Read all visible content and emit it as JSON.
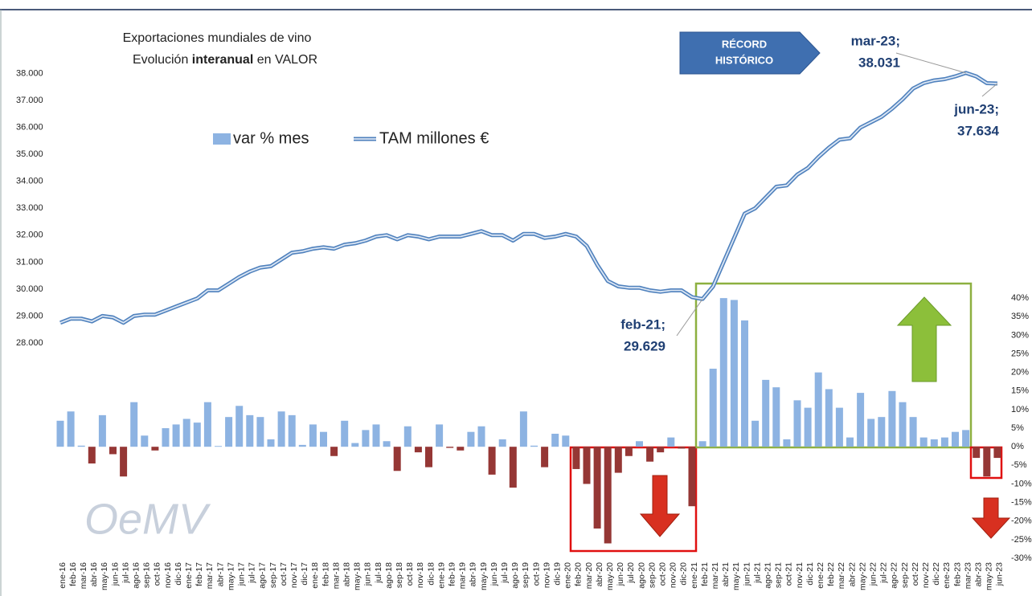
{
  "chart_data": {
    "type": "combo",
    "title": "Exportaciones mundiales de vino",
    "subtitle": [
      "Evolución ",
      "interanual",
      " en VALOR"
    ],
    "categories": [
      "ene-16",
      "feb-16",
      "mar-16",
      "abr-16",
      "may-16",
      "jun-16",
      "jul-16",
      "ago-16",
      "sep-16",
      "oct-16",
      "nov-16",
      "dic-16",
      "ene-17",
      "feb-17",
      "mar-17",
      "abr-17",
      "may-17",
      "jun-17",
      "jul-17",
      "ago-17",
      "sep-17",
      "oct-17",
      "nov-17",
      "dic-17",
      "ene-18",
      "feb-18",
      "mar-18",
      "abr-18",
      "may-18",
      "jun-18",
      "jul-18",
      "ago-18",
      "sep-18",
      "oct-18",
      "nov-18",
      "dic-18",
      "ene-19",
      "feb-19",
      "mar-19",
      "abr-19",
      "may-19",
      "jun-19",
      "jul-19",
      "ago-19",
      "sep-19",
      "oct-19",
      "nov-19",
      "dic-19",
      "ene-20",
      "feb-20",
      "mar-20",
      "abr-20",
      "may-20",
      "jun-20",
      "jul-20",
      "ago-20",
      "sep-20",
      "oct-20",
      "nov-20",
      "dic-20",
      "ene-21",
      "feb-21",
      "mar-21",
      "abr-21",
      "may-21",
      "jun-21",
      "jul-21",
      "ago-21",
      "sep-21",
      "oct-21",
      "nov-21",
      "dic-21",
      "ene-22",
      "feb-22",
      "mar-22",
      "abr-22",
      "may-22",
      "jun-22",
      "jul-22",
      "ago-22",
      "sep-22",
      "oct-22",
      "nov-22",
      "dic-22",
      "ene-23",
      "feb-23",
      "mar-23",
      "abr-23",
      "may-23",
      "jun-23"
    ],
    "series": [
      {
        "name": "var % mes",
        "type": "bar",
        "axis": "y2",
        "color": "#8db3e2",
        "negative_color": "#953735",
        "values": [
          7,
          9.5,
          0.3,
          -4.5,
          8.5,
          -2,
          -8,
          12,
          3,
          -1,
          5,
          6,
          7.5,
          6.5,
          12,
          0.2,
          8,
          11,
          8.5,
          8,
          2,
          9.5,
          8.5,
          0.5,
          6,
          4,
          -2.5,
          7,
          1,
          4.5,
          6,
          1.5,
          -6.5,
          5.5,
          -1.5,
          -5.5,
          6,
          -0.3,
          -1,
          4,
          5.5,
          -7.5,
          2,
          -11,
          9.5,
          0.3,
          -5.5,
          3.5,
          3,
          -6,
          -10,
          -22,
          -26,
          -7,
          -2.5,
          1.5,
          -4,
          -1.5,
          2.5,
          -0.5,
          -16,
          1.5,
          21,
          40,
          39.5,
          34,
          7,
          18,
          16,
          2,
          12.5,
          10.5,
          20,
          15.5,
          10.5,
          2.5,
          14.5,
          7.5,
          8,
          15,
          12,
          8,
          2.5,
          2,
          2.5,
          4,
          4.5,
          -3,
          -8,
          -3
        ]
      },
      {
        "name": "TAM millones €",
        "type": "line",
        "color": "#4f81bd",
        "values": [
          28750,
          28900,
          28900,
          28800,
          29000,
          28950,
          28750,
          29000,
          29050,
          29050,
          29200,
          29350,
          29500,
          29650,
          29950,
          29950,
          30200,
          30450,
          30650,
          30800,
          30850,
          31100,
          31350,
          31400,
          31500,
          31550,
          31500,
          31650,
          31700,
          31800,
          31950,
          32000,
          31850,
          32000,
          31950,
          31850,
          31950,
          31950,
          31950,
          32050,
          32150,
          32000,
          32000,
          31800,
          32050,
          32050,
          31900,
          31950,
          32050,
          31950,
          31600,
          30900,
          30300,
          30100,
          30050,
          30050,
          29950,
          29900,
          29950,
          29950,
          29700,
          29629,
          30100,
          31000,
          31900,
          32800,
          33000,
          33400,
          33800,
          33850,
          34250,
          34500,
          34900,
          35250,
          35550,
          35600,
          36000,
          36200,
          36400,
          36700,
          37050,
          37450,
          37650,
          37750,
          37800,
          37900,
          38031,
          37900,
          37650,
          37634
        ],
        "value_labels": [
          null,
          null,
          null,
          null,
          null,
          null,
          null,
          null,
          null,
          null,
          null,
          null,
          null,
          null,
          null,
          null,
          null,
          null,
          null,
          null,
          null,
          null,
          null,
          null,
          null,
          null,
          null,
          null,
          null,
          null,
          null,
          null,
          null,
          null,
          null,
          null,
          null,
          null,
          null,
          null,
          null,
          null,
          null,
          null,
          null,
          null,
          null,
          null,
          null,
          null,
          null,
          null,
          null,
          null,
          null,
          null,
          null,
          null,
          null,
          null,
          null,
          "29.629",
          null,
          null,
          null,
          null,
          null,
          null,
          null,
          null,
          null,
          null,
          null,
          null,
          null,
          null,
          null,
          null,
          null,
          null,
          null,
          null,
          null,
          null,
          null,
          null,
          "38.031",
          null,
          null,
          "37.634"
        ]
      }
    ],
    "ylim": [
      20000,
      38500
    ],
    "yticks": [
      {
        "value": 28000,
        "label": "28.000"
      },
      {
        "value": 29000,
        "label": "29.000"
      },
      {
        "value": 30000,
        "label": "30.000"
      },
      {
        "value": 31000,
        "label": "31.000"
      },
      {
        "value": 32000,
        "label": "32.000"
      },
      {
        "value": 33000,
        "label": "33.000"
      },
      {
        "value": 34000,
        "label": "34.000"
      },
      {
        "value": 35000,
        "label": "35.000"
      },
      {
        "value": 36000,
        "label": "36.000"
      },
      {
        "value": 37000,
        "label": "37.000"
      },
      {
        "value": 38000,
        "label": "38.000"
      }
    ],
    "y2lim": [
      -30,
      104
    ],
    "y2ticks": [
      {
        "value": 40,
        "label": "40%"
      },
      {
        "value": 35,
        "label": "35%"
      },
      {
        "value": 30,
        "label": "30%"
      },
      {
        "value": 25,
        "label": "25%"
      },
      {
        "value": 20,
        "label": "20%"
      },
      {
        "value": 15,
        "label": "15%"
      },
      {
        "value": 10,
        "label": "10%"
      },
      {
        "value": 5,
        "label": "5%"
      },
      {
        "value": 0,
        "label": "0%"
      },
      {
        "value": -5,
        "label": "-5%"
      },
      {
        "value": -10,
        "label": "-10%"
      },
      {
        "value": -15,
        "label": "-15%"
      },
      {
        "value": -20,
        "label": "-20%"
      },
      {
        "value": -25,
        "label": "-25%"
      },
      {
        "value": -30,
        "label": "-30%"
      }
    ],
    "negative_tick_color": "#e02020",
    "annotations": [
      "feb-21;",
      "mar-23;",
      "jun-23;"
    ],
    "callout": [
      "RÉCORD",
      "HISTÓRICO"
    ],
    "logo": "OeMV"
  }
}
